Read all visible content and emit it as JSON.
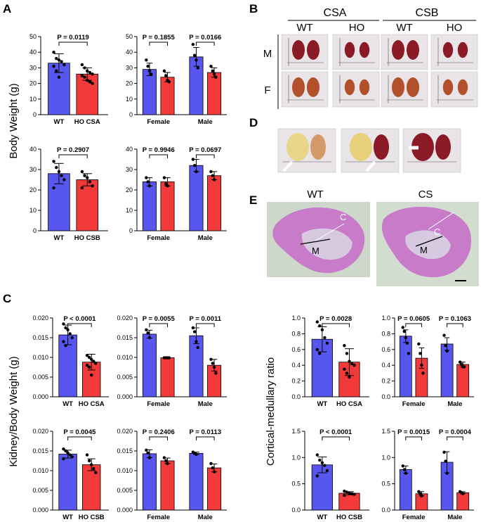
{
  "colors": {
    "wt": "#5757f0",
    "ho": "#f23a3a",
    "axis": "#000000"
  },
  "panel_labels": [
    "A",
    "B",
    "C",
    "D",
    "E"
  ],
  "y_labels": {
    "A": "Body Weight (g)",
    "C": "Kidney/Body Weight (g)",
    "E": "Cortical-medullary ratio"
  },
  "photo_panel_B": {
    "col_groups": [
      "CSA",
      "CSB"
    ],
    "col_labels": [
      "WT",
      "HO",
      "WT",
      "HO"
    ],
    "row_labels": [
      "M",
      "F"
    ]
  },
  "histology_panel_E": {
    "titles": [
      "WT",
      "CS"
    ],
    "region_labels": [
      "C",
      "M",
      "C",
      "M"
    ]
  },
  "chart_data": [
    {
      "id": "A1",
      "type": "bar",
      "categories": [
        "WT",
        "HO CSA"
      ],
      "ylim": [
        0,
        50
      ],
      "ticks": [
        0,
        10,
        20,
        30,
        40,
        50
      ],
      "series": [
        {
          "name": "WT",
          "value": 33,
          "err": 6,
          "points": [
            40,
            36,
            35,
            34,
            32,
            31,
            28,
            24
          ]
        },
        {
          "name": "HO",
          "value": 26,
          "err": 4,
          "points": [
            32,
            30,
            28,
            27,
            26,
            25,
            24,
            22,
            21,
            20
          ]
        }
      ],
      "pvalues": [
        "P = 0.0119"
      ]
    },
    {
      "id": "A2",
      "type": "bar",
      "categories": [
        "Female",
        "Male"
      ],
      "ylim": [
        0,
        50
      ],
      "ticks": [
        0,
        10,
        20,
        30,
        40,
        50
      ],
      "series": [
        {
          "name": "Female WT",
          "value": 29,
          "err": 4,
          "points": [
            35,
            31,
            28,
            26
          ]
        },
        {
          "name": "Female HO",
          "value": 24,
          "err": 3,
          "points": [
            28,
            25,
            22,
            21
          ]
        },
        {
          "name": "Male WT",
          "value": 37,
          "err": 6,
          "points": [
            45,
            38,
            35,
            30
          ]
        },
        {
          "name": "Male HO",
          "value": 27,
          "err": 3,
          "points": [
            31,
            28,
            26,
            24
          ]
        }
      ],
      "pvalues": [
        "P = 0.1855",
        "P = 0.0166"
      ]
    },
    {
      "id": "A3",
      "type": "bar",
      "categories": [
        "WT",
        "HO CSB"
      ],
      "ylim": [
        0,
        40
      ],
      "ticks": [
        0,
        10,
        20,
        30,
        40
      ],
      "series": [
        {
          "name": "WT",
          "value": 28,
          "err": 5,
          "points": [
            34,
            31,
            29,
            27,
            25,
            21
          ]
        },
        {
          "name": "HO",
          "value": 25,
          "err": 3,
          "points": [
            29,
            27,
            26,
            24,
            22,
            21
          ]
        }
      ],
      "pvalues": [
        "P = 0.2907"
      ]
    },
    {
      "id": "A4",
      "type": "bar",
      "categories": [
        "Female",
        "Male"
      ],
      "ylim": [
        0,
        40
      ],
      "ticks": [
        0,
        10,
        20,
        30,
        40
      ],
      "series": [
        {
          "name": "Female WT",
          "value": 24,
          "err": 2,
          "points": [
            26,
            24,
            22
          ]
        },
        {
          "name": "Female HO",
          "value": 24,
          "err": 2,
          "points": [
            26,
            23,
            22
          ]
        },
        {
          "name": "Male WT",
          "value": 32,
          "err": 3,
          "points": [
            35,
            32,
            29
          ]
        },
        {
          "name": "Male HO",
          "value": 27,
          "err": 2,
          "points": [
            29,
            27,
            25
          ]
        }
      ],
      "pvalues": [
        "P = 0.9946",
        "P = 0.0697"
      ]
    },
    {
      "id": "C1",
      "type": "bar",
      "categories": [
        "WT",
        "HO CSA"
      ],
      "ylim": [
        0,
        0.02
      ],
      "ticks": [
        "0.000",
        "0.005",
        "0.010",
        "0.015",
        "0.020"
      ],
      "series": [
        {
          "name": "WT",
          "value": 0.0157,
          "err": 0.0025,
          "points": [
            0.0185,
            0.0175,
            0.017,
            0.016,
            0.015,
            0.014,
            0.013
          ]
        },
        {
          "name": "HO",
          "value": 0.0088,
          "err": 0.002,
          "points": [
            0.0105,
            0.01,
            0.0095,
            0.009,
            0.0085,
            0.008,
            0.0075,
            0.0055
          ]
        }
      ],
      "pvalues": [
        "P < 0.0001"
      ]
    },
    {
      "id": "C2",
      "type": "bar",
      "categories": [
        "Female",
        "Male"
      ],
      "ylim": [
        0,
        0.02
      ],
      "ticks": [
        "0.000",
        "0.005",
        "0.010",
        "0.015",
        "0.020"
      ],
      "series": [
        {
          "name": "Female WT",
          "value": 0.0159,
          "err": 0.001,
          "points": [
            0.017,
            0.0162,
            0.015
          ]
        },
        {
          "name": "Female HO",
          "value": 0.0099,
          "err": 0.0001,
          "points": [
            0.0099,
            0.0099,
            0.0099,
            0.0099
          ]
        },
        {
          "name": "Male WT",
          "value": 0.0155,
          "err": 0.002,
          "points": [
            0.0175,
            0.0165,
            0.014,
            0.0125
          ]
        },
        {
          "name": "Male HO",
          "value": 0.008,
          "err": 0.0015,
          "points": [
            0.0095,
            0.0085,
            0.0075,
            0.006
          ]
        }
      ],
      "pvalues": [
        "P = 0.0055",
        "P = 0.0011"
      ]
    },
    {
      "id": "C3",
      "type": "bar",
      "categories": [
        "WT",
        "HO CSB"
      ],
      "ylim": [
        0,
        0.02
      ],
      "ticks": [
        "0.000",
        "0.005",
        "0.010",
        "0.015",
        "0.020"
      ],
      "series": [
        {
          "name": "WT",
          "value": 0.0142,
          "err": 0.001,
          "points": [
            0.0155,
            0.015,
            0.0145,
            0.014,
            0.0135,
            0.013
          ]
        },
        {
          "name": "HO",
          "value": 0.0115,
          "err": 0.0015,
          "points": [
            0.014,
            0.0125,
            0.0115,
            0.0105,
            0.0095
          ]
        }
      ],
      "pvalues": [
        "P = 0.0045"
      ]
    },
    {
      "id": "C4",
      "type": "bar",
      "categories": [
        "Female",
        "Male"
      ],
      "ylim": [
        0,
        0.02
      ],
      "ticks": [
        "0.000",
        "0.005",
        "0.010",
        "0.015",
        "0.020"
      ],
      "series": [
        {
          "name": "Female WT",
          "value": 0.0143,
          "err": 0.001,
          "points": [
            0.0152,
            0.0145,
            0.0133
          ]
        },
        {
          "name": "Female HO",
          "value": 0.0125,
          "err": 0.0007,
          "points": [
            0.0133,
            0.0125,
            0.0118
          ]
        },
        {
          "name": "Male WT",
          "value": 0.0144,
          "err": 0.0003,
          "points": [
            0.0147,
            0.0144,
            0.0141
          ]
        },
        {
          "name": "Male HO",
          "value": 0.0107,
          "err": 0.001,
          "points": [
            0.0118,
            0.0107,
            0.0097
          ]
        }
      ],
      "pvalues": [
        "P = 0.2406",
        "P = 0.0113"
      ]
    },
    {
      "id": "E1",
      "type": "bar",
      "categories": [
        "WT",
        "HO CSA"
      ],
      "ylim": [
        0,
        1.0
      ],
      "ticks": [
        "0.0",
        "0.2",
        "0.4",
        "0.6",
        "0.8",
        "1.0"
      ],
      "series": [
        {
          "name": "WT",
          "value": 0.73,
          "err": 0.16,
          "points": [
            0.95,
            0.9,
            0.85,
            0.75,
            0.68,
            0.6,
            0.55
          ]
        },
        {
          "name": "HO",
          "value": 0.44,
          "err": 0.17,
          "points": [
            0.65,
            0.55,
            0.45,
            0.42,
            0.4,
            0.35,
            0.3,
            0.25
          ]
        }
      ],
      "pvalues": [
        "P = 0.0028"
      ]
    },
    {
      "id": "E2",
      "type": "bar",
      "categories": [
        "Female",
        "Male"
      ],
      "ylim": [
        0,
        1.0
      ],
      "ticks": [
        "0.0",
        "0.2",
        "0.4",
        "0.6",
        "0.8",
        "1.0"
      ],
      "series": [
        {
          "name": "Female WT",
          "value": 0.77,
          "err": 0.08,
          "points": [
            0.88,
            0.83,
            0.75,
            0.68,
            0.55
          ]
        },
        {
          "name": "Female HO",
          "value": 0.49,
          "err": 0.13,
          "points": [
            0.67,
            0.55,
            0.4,
            0.3
          ]
        },
        {
          "name": "Male WT",
          "value": 0.67,
          "err": 0.08,
          "points": [
            0.78,
            0.65,
            0.58
          ]
        },
        {
          "name": "Male HO",
          "value": 0.41,
          "err": 0.03,
          "points": [
            0.44,
            0.41,
            0.38,
            0.38
          ]
        }
      ],
      "pvalues": [
        "P = 0.0605",
        "P = 0.1063"
      ]
    },
    {
      "id": "E3",
      "type": "bar",
      "categories": [
        "WT",
        "HO CSB"
      ],
      "ylim": [
        0,
        1.5
      ],
      "ticks": [
        "0.0",
        "0.5",
        "1.0",
        "1.5"
      ],
      "series": [
        {
          "name": "WT",
          "value": 0.86,
          "err": 0.15,
          "points": [
            1.05,
            0.95,
            0.9,
            0.85,
            0.75,
            0.65
          ]
        },
        {
          "name": "HO",
          "value": 0.32,
          "err": 0.03,
          "points": [
            0.36,
            0.34,
            0.32,
            0.31,
            0.3,
            0.28
          ]
        }
      ],
      "pvalues": [
        "P < 0.0001"
      ]
    },
    {
      "id": "E4",
      "type": "bar",
      "categories": [
        "Female",
        "Male"
      ],
      "ylim": [
        0,
        1.5
      ],
      "ticks": [
        "0.0",
        "0.5",
        "1.0",
        "1.5"
      ],
      "series": [
        {
          "name": "Female WT",
          "value": 0.77,
          "err": 0.07,
          "points": [
            0.84,
            0.77,
            0.7
          ]
        },
        {
          "name": "Female HO",
          "value": 0.31,
          "err": 0.04,
          "points": [
            0.35,
            0.31,
            0.27
          ]
        },
        {
          "name": "Male WT",
          "value": 0.91,
          "err": 0.2,
          "points": [
            1.1,
            0.93,
            0.7
          ]
        },
        {
          "name": "Male HO",
          "value": 0.33,
          "err": 0.02,
          "points": [
            0.35,
            0.33,
            0.31
          ]
        }
      ],
      "pvalues": [
        "P = 0.0015",
        "P = 0.0004"
      ]
    }
  ]
}
